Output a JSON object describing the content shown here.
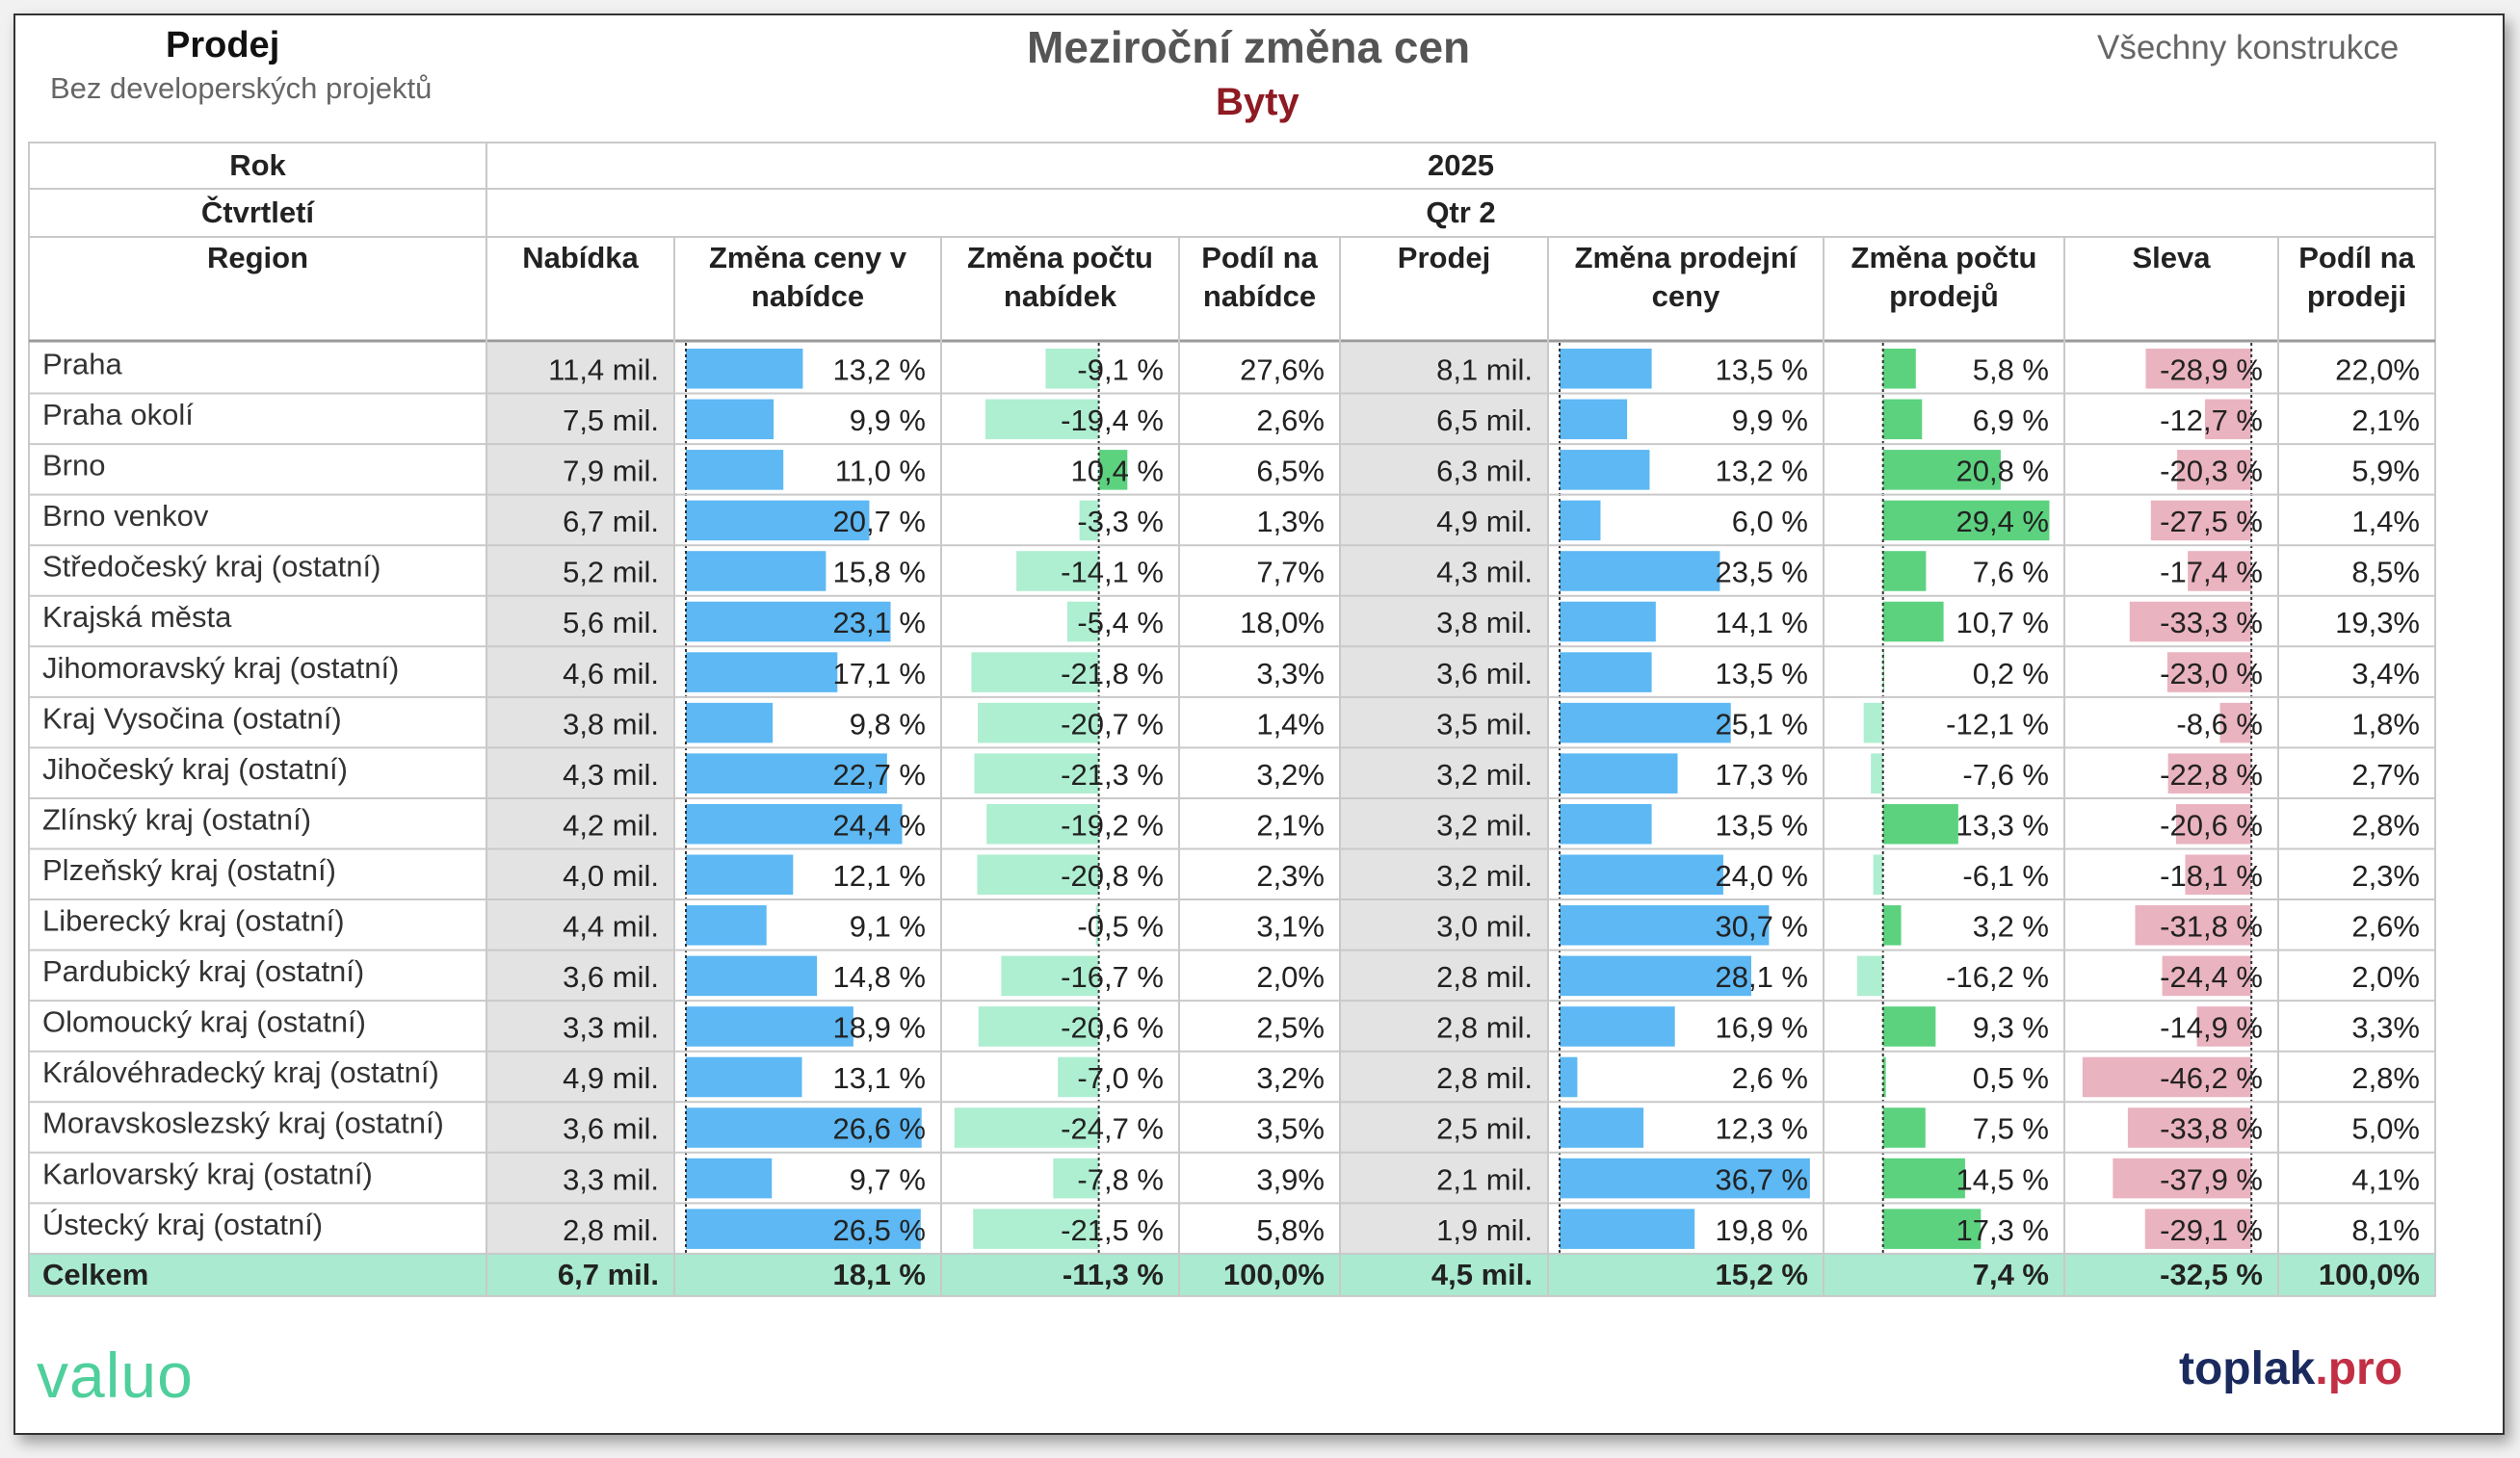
{
  "header": {
    "left_title": "Prodej",
    "left_subtitle": "Bez developerských projektů",
    "title": "Meziroční změna cen",
    "subtitle": "Byty",
    "right_label": "Všechny konstrukce"
  },
  "table_header": {
    "rok_label": "Rok",
    "rok_value": "2025",
    "ctvrtleti_label": "Čtvrtletí",
    "ctvrtleti_value": "Qtr 2",
    "region_label": "Region",
    "columns": [
      [
        "Nabídka"
      ],
      [
        "Změna ceny v",
        "nabídce"
      ],
      [
        "Změna počtu",
        "nabídek"
      ],
      [
        "Podíl na",
        "nabídce"
      ],
      [
        "Prodej"
      ],
      [
        "Změna prodejní",
        "ceny"
      ],
      [
        "Změna počtu",
        "prodejů"
      ],
      [
        "Sleva"
      ],
      [
        "Podíl na",
        "prodeji"
      ]
    ]
  },
  "footer": {
    "logo_left": "valuo",
    "logo_right_a": "toplak",
    "logo_right_b": ".pro"
  },
  "colors": {
    "header_bg": "#ffffff",
    "gray_cell": "#e3e3e3",
    "blue_bar": "#5db8f4",
    "light_green_bar": "#aeeed1",
    "green_bar": "#5cd27f",
    "pink_bar": "#eab3c0",
    "total_row": "#a9ead0",
    "title_red": "#8e1a22"
  },
  "chart_data": {
    "type": "table",
    "title": "Meziroční změna cen",
    "subtitle": "Byty",
    "rows": [
      {
        "region": "Praha",
        "nabidka": "11,4 mil.",
        "zmena_ceny_nabidka": 13.2,
        "zmena_poctu_nabidek": -9.1,
        "podil_nabidka": "27,6%",
        "prodej": "8,1 mil.",
        "zmena_prodejni_ceny": 13.5,
        "zmena_poctu_prodeju": 5.8,
        "sleva": -28.9,
        "podil_prodej": "22,0%"
      },
      {
        "region": "Praha okolí",
        "nabidka": "7,5 mil.",
        "zmena_ceny_nabidka": 9.9,
        "zmena_poctu_nabidek": -19.4,
        "podil_nabidka": "2,6%",
        "prodej": "6,5 mil.",
        "zmena_prodejni_ceny": 9.9,
        "zmena_poctu_prodeju": 6.9,
        "sleva": -12.7,
        "podil_prodej": "2,1%"
      },
      {
        "region": "Brno",
        "nabidka": "7,9 mil.",
        "zmena_ceny_nabidka": 11.0,
        "zmena_poctu_nabidek": 10.4,
        "podil_nabidka": "6,5%",
        "prodej": "6,3 mil.",
        "zmena_prodejni_ceny": 13.2,
        "zmena_poctu_prodeju": 20.8,
        "sleva": -20.3,
        "podil_prodej": "5,9%"
      },
      {
        "region": "Brno venkov",
        "nabidka": "6,7 mil.",
        "zmena_ceny_nabidka": 20.7,
        "zmena_poctu_nabidek": -3.3,
        "podil_nabidka": "1,3%",
        "prodej": "4,9 mil.",
        "zmena_prodejni_ceny": 6.0,
        "zmena_poctu_prodeju": 29.4,
        "sleva": -27.5,
        "podil_prodej": "1,4%"
      },
      {
        "region": "Středočeský kraj (ostatní)",
        "nabidka": "5,2 mil.",
        "zmena_ceny_nabidka": 15.8,
        "zmena_poctu_nabidek": -14.1,
        "podil_nabidka": "7,7%",
        "prodej": "4,3 mil.",
        "zmena_prodejni_ceny": 23.5,
        "zmena_poctu_prodeju": 7.6,
        "sleva": -17.4,
        "podil_prodej": "8,5%"
      },
      {
        "region": "Krajská města",
        "nabidka": "5,6 mil.",
        "zmena_ceny_nabidka": 23.1,
        "zmena_poctu_nabidek": -5.4,
        "podil_nabidka": "18,0%",
        "prodej": "3,8 mil.",
        "zmena_prodejni_ceny": 14.1,
        "zmena_poctu_prodeju": 10.7,
        "sleva": -33.3,
        "podil_prodej": "19,3%"
      },
      {
        "region": "Jihomoravský kraj (ostatní)",
        "nabidka": "4,6 mil.",
        "zmena_ceny_nabidka": 17.1,
        "zmena_poctu_nabidek": -21.8,
        "podil_nabidka": "3,3%",
        "prodej": "3,6 mil.",
        "zmena_prodejni_ceny": 13.5,
        "zmena_poctu_prodeju": 0.2,
        "sleva": -23.0,
        "podil_prodej": "3,4%"
      },
      {
        "region": "Kraj Vysočina (ostatní)",
        "nabidka": "3,8 mil.",
        "zmena_ceny_nabidka": 9.8,
        "zmena_poctu_nabidek": -20.7,
        "podil_nabidka": "1,4%",
        "prodej": "3,5 mil.",
        "zmena_prodejni_ceny": 25.1,
        "zmena_poctu_prodeju": -12.1,
        "sleva": -8.6,
        "podil_prodej": "1,8%"
      },
      {
        "region": "Jihočeský kraj (ostatní)",
        "nabidka": "4,3 mil.",
        "zmena_ceny_nabidka": 22.7,
        "zmena_poctu_nabidek": -21.3,
        "podil_nabidka": "3,2%",
        "prodej": "3,2 mil.",
        "zmena_prodejni_ceny": 17.3,
        "zmena_poctu_prodeju": -7.6,
        "sleva": -22.8,
        "podil_prodej": "2,7%"
      },
      {
        "region": "Zlínský kraj (ostatní)",
        "nabidka": "4,2 mil.",
        "zmena_ceny_nabidka": 24.4,
        "zmena_poctu_nabidek": -19.2,
        "podil_nabidka": "2,1%",
        "prodej": "3,2 mil.",
        "zmena_prodejni_ceny": 13.5,
        "zmena_poctu_prodeju": 13.3,
        "sleva": -20.6,
        "podil_prodej": "2,8%"
      },
      {
        "region": "Plzeňský kraj (ostatní)",
        "nabidka": "4,0 mil.",
        "zmena_ceny_nabidka": 12.1,
        "zmena_poctu_nabidek": -20.8,
        "podil_nabidka": "2,3%",
        "prodej": "3,2 mil.",
        "zmena_prodejni_ceny": 24.0,
        "zmena_poctu_prodeju": -6.1,
        "sleva": -18.1,
        "podil_prodej": "2,3%"
      },
      {
        "region": "Liberecký kraj (ostatní)",
        "nabidka": "4,4 mil.",
        "zmena_ceny_nabidka": 9.1,
        "zmena_poctu_nabidek": -0.5,
        "podil_nabidka": "3,1%",
        "prodej": "3,0 mil.",
        "zmena_prodejni_ceny": 30.7,
        "zmena_poctu_prodeju": 3.2,
        "sleva": -31.8,
        "podil_prodej": "2,6%"
      },
      {
        "region": "Pardubický kraj (ostatní)",
        "nabidka": "3,6 mil.",
        "zmena_ceny_nabidka": 14.8,
        "zmena_poctu_nabidek": -16.7,
        "podil_nabidka": "2,0%",
        "prodej": "2,8 mil.",
        "zmena_prodejni_ceny": 28.1,
        "zmena_poctu_prodeju": -16.2,
        "sleva": -24.4,
        "podil_prodej": "2,0%"
      },
      {
        "region": "Olomoucký kraj (ostatní)",
        "nabidka": "3,3 mil.",
        "zmena_ceny_nabidka": 18.9,
        "zmena_poctu_nabidek": -20.6,
        "podil_nabidka": "2,5%",
        "prodej": "2,8 mil.",
        "zmena_prodejni_ceny": 16.9,
        "zmena_poctu_prodeju": 9.3,
        "sleva": -14.9,
        "podil_prodej": "3,3%"
      },
      {
        "region": "Královéhradecký kraj (ostatní)",
        "nabidka": "4,9 mil.",
        "zmena_ceny_nabidka": 13.1,
        "zmena_poctu_nabidek": -7.0,
        "podil_nabidka": "3,2%",
        "prodej": "2,8 mil.",
        "zmena_prodejni_ceny": 2.6,
        "zmena_poctu_prodeju": 0.5,
        "sleva": -46.2,
        "podil_prodej": "2,8%"
      },
      {
        "region": "Moravskoslezský kraj (ostatní)",
        "nabidka": "3,6 mil.",
        "zmena_ceny_nabidka": 26.6,
        "zmena_poctu_nabidek": -24.7,
        "podil_nabidka": "3,5%",
        "prodej": "2,5 mil.",
        "zmena_prodejni_ceny": 12.3,
        "zmena_poctu_prodeju": 7.5,
        "sleva": -33.8,
        "podil_prodej": "5,0%"
      },
      {
        "region": "Karlovarský kraj (ostatní)",
        "nabidka": "3,3 mil.",
        "zmena_ceny_nabidka": 9.7,
        "zmena_poctu_nabidek": -7.8,
        "podil_nabidka": "3,9%",
        "prodej": "2,1 mil.",
        "zmena_prodejni_ceny": 36.7,
        "zmena_poctu_prodeju": 14.5,
        "sleva": -37.9,
        "podil_prodej": "4,1%"
      },
      {
        "region": "Ústecký kraj (ostatní)",
        "nabidka": "2,8 mil.",
        "zmena_ceny_nabidka": 26.5,
        "zmena_poctu_nabidek": -21.5,
        "podil_nabidka": "5,8%",
        "prodej": "1,9 mil.",
        "zmena_prodejni_ceny": 19.8,
        "zmena_poctu_prodeju": 17.3,
        "sleva": -29.1,
        "podil_prodej": "8,1%"
      }
    ],
    "total": {
      "region": "Celkem",
      "nabidka": "6,7 mil.",
      "zmena_ceny_nabidka": 18.1,
      "zmena_poctu_nabidek": -11.3,
      "podil_nabidka": "100,0%",
      "prodej": "4,5 mil.",
      "zmena_prodejni_ceny": 15.2,
      "zmena_poctu_prodeju": 7.4,
      "sleva": -32.5,
      "podil_prodej": "100,0%"
    }
  }
}
